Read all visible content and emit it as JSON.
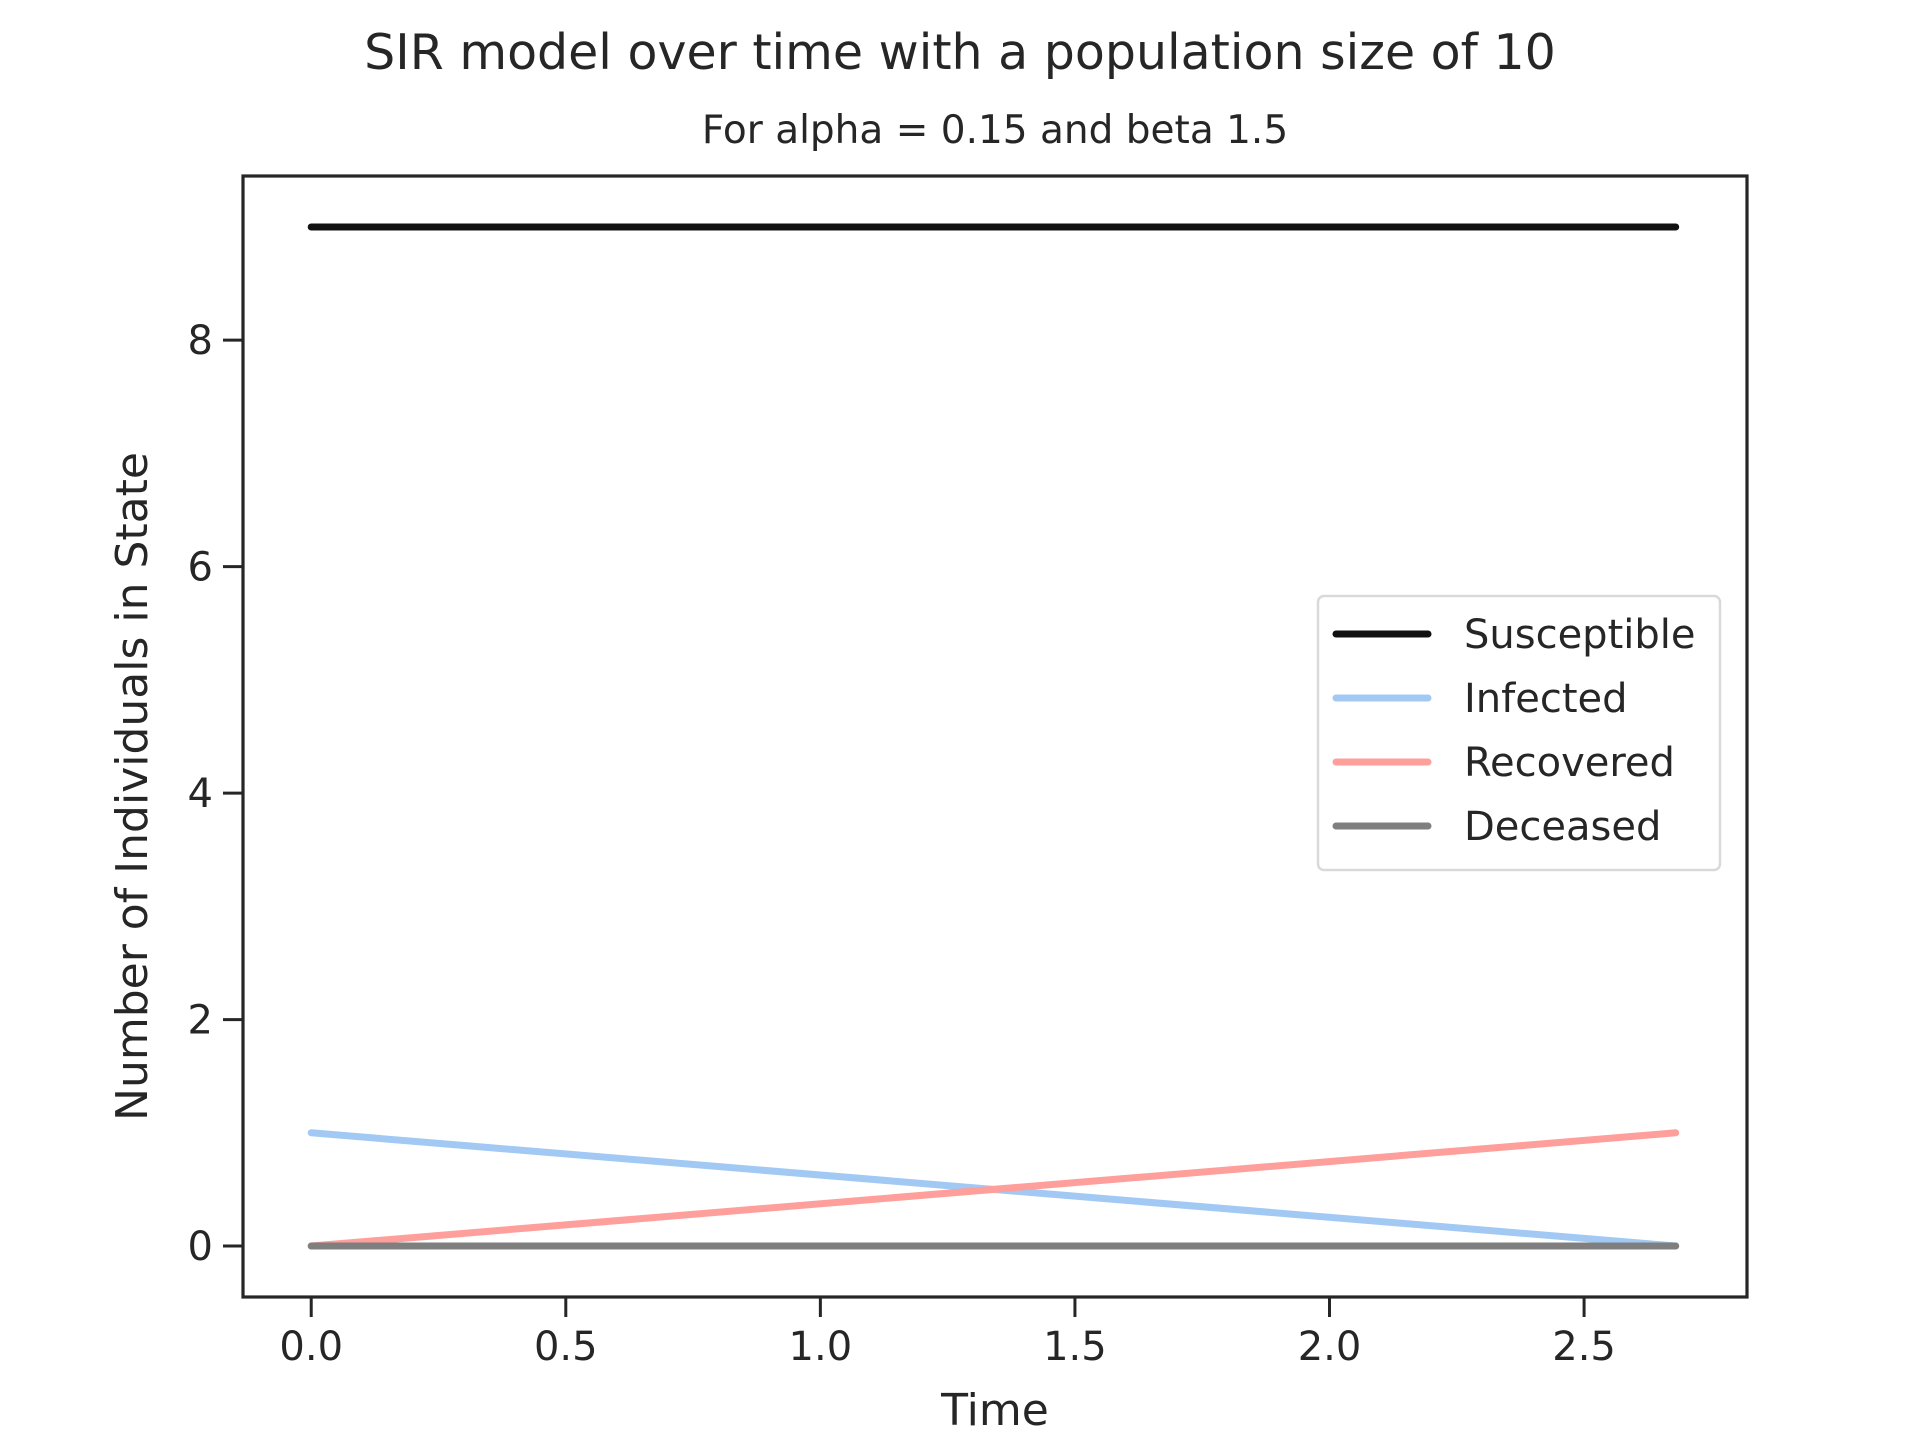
{
  "chart_data": {
    "type": "line",
    "title": "SIR model over time with a population size of 10",
    "subtitle": "For alpha = 0.15 and beta 1.5",
    "xlabel": "Time",
    "ylabel": "Number of Individuals in State",
    "xlim": [
      -0.134,
      2.82
    ],
    "ylim": [
      -0.45,
      9.45
    ],
    "xticks": [
      0.0,
      0.5,
      1.0,
      1.5,
      2.0,
      2.5
    ],
    "xtick_labels": [
      "0.0",
      "0.5",
      "1.0",
      "1.5",
      "2.0",
      "2.5"
    ],
    "yticks": [
      0,
      2,
      4,
      6,
      8
    ],
    "ytick_labels": [
      "0",
      "2",
      "4",
      "6",
      "8"
    ],
    "grid": false,
    "legend_position": "center-right",
    "series": [
      {
        "name": "Susceptible",
        "color": "#111111",
        "x": [
          0.0,
          2.68
        ],
        "y": [
          9,
          9
        ]
      },
      {
        "name": "Infected",
        "color": "#a1c9f4",
        "x": [
          0.0,
          2.68
        ],
        "y": [
          1,
          0
        ]
      },
      {
        "name": "Recovered",
        "color": "#ff9f9b",
        "x": [
          0.0,
          2.68
        ],
        "y": [
          0,
          1
        ]
      },
      {
        "name": "Deceased",
        "color": "#7f7f7f",
        "x": [
          0.0,
          2.68
        ],
        "y": [
          0,
          0
        ]
      }
    ]
  }
}
